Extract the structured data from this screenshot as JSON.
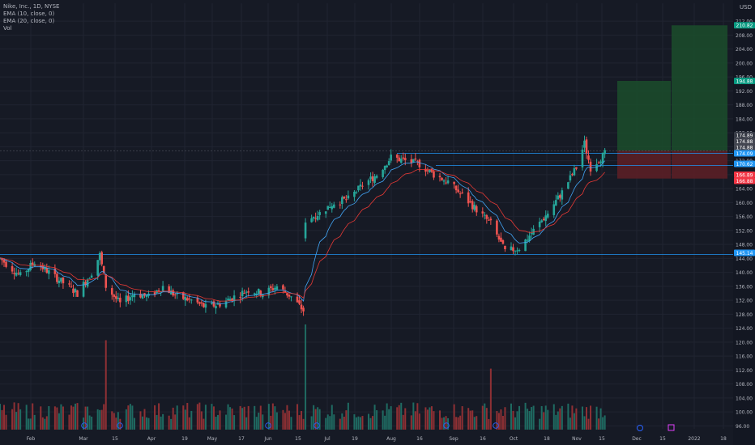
{
  "legend": {
    "title": "Nike, Inc., 1D, NYSE",
    "ema10": "EMA (10, close, 0)",
    "ema20": "EMA (20, close, 0)",
    "vol": "Vol"
  },
  "currency": "USD",
  "colors": {
    "background": "#161a25",
    "grid": "#202431",
    "up": "#26a69a",
    "down": "#ef5350",
    "vol_up": "#1f6b62",
    "vol_down": "#8f3034",
    "ema10": "#42a5f5",
    "ema20": "#e53935",
    "hline": "#2196f3",
    "target_zone": "#1b4d2b",
    "stop_zone": "#5a1f26",
    "axis_text": "#b2b5be"
  },
  "axis": {
    "price_min": 94,
    "price_max": 212.5,
    "price_ticks": [
      "96.00",
      "100.00",
      "104.00",
      "108.00",
      "112.00",
      "116.00",
      "120.00",
      "124.00",
      "128.00",
      "132.00",
      "136.00",
      "140.00",
      "144.00",
      "148.00",
      "152.00",
      "156.00",
      "160.00",
      "164.00",
      "168.00",
      "172.00",
      "176.00",
      "180.00",
      "184.00",
      "188.00",
      "192.00",
      "196.00",
      "200.00",
      "204.00",
      "208.00",
      "212.00"
    ],
    "time_labels": [
      "Feb",
      "Mar",
      "15",
      "Apr",
      "19",
      "May",
      "17",
      "Jun",
      "15",
      "Jul",
      "19",
      "Aug",
      "16",
      "Sep",
      "16",
      "Oct",
      "18",
      "Nov",
      "15",
      "Dec",
      "15",
      "2022",
      "18"
    ]
  },
  "price_badges": [
    {
      "label": "210.82",
      "value": 210.82,
      "color": "#089981"
    },
    {
      "label": "194.88",
      "value": 194.88,
      "color": "#089981"
    },
    {
      "label": "174.89",
      "value": 174.89,
      "color": "#363a45"
    },
    {
      "label": "174.88",
      "value": 174.88,
      "color": "#434651"
    },
    {
      "label": "174.88",
      "value": 174.88,
      "color": "#434651"
    },
    {
      "label": "174.09",
      "value": 174.09,
      "color": "#2196f3"
    },
    {
      "label": "170.62",
      "value": 170.62,
      "color": "#2196f3"
    },
    {
      "label": "166.89",
      "value": 166.89,
      "color": "#f23645"
    },
    {
      "label": "166.88",
      "value": 166.88,
      "color": "#f23645"
    },
    {
      "label": "145.14",
      "value": 145.14,
      "color": "#2196f3"
    }
  ],
  "chart_data": {
    "type": "candlestick",
    "title": "Nike, Inc., 1D, NYSE",
    "x_range": [
      "2021-01-26",
      "2022-01-21"
    ],
    "y_range": [
      94,
      212.5
    ],
    "price_path": [
      {
        "date": "2021-01-26",
        "close": 144
      },
      {
        "date": "2021-02-05",
        "close": 139
      },
      {
        "date": "2021-02-12",
        "close": 143
      },
      {
        "date": "2021-02-19",
        "close": 140
      },
      {
        "date": "2021-02-26",
        "close": 137
      },
      {
        "date": "2021-03-05",
        "close": 134
      },
      {
        "date": "2021-03-12",
        "close": 140
      },
      {
        "date": "2021-03-16",
        "close": 145
      },
      {
        "date": "2021-03-19",
        "close": 136
      },
      {
        "date": "2021-03-26",
        "close": 131
      },
      {
        "date": "2021-04-02",
        "close": 134
      },
      {
        "date": "2021-04-09",
        "close": 133
      },
      {
        "date": "2021-04-16",
        "close": 136
      },
      {
        "date": "2021-04-23",
        "close": 133
      },
      {
        "date": "2021-04-30",
        "close": 132
      },
      {
        "date": "2021-05-07",
        "close": 130
      },
      {
        "date": "2021-05-14",
        "close": 131
      },
      {
        "date": "2021-05-21",
        "close": 133
      },
      {
        "date": "2021-05-28",
        "close": 135
      },
      {
        "date": "2021-06-04",
        "close": 134
      },
      {
        "date": "2021-06-11",
        "close": 136
      },
      {
        "date": "2021-06-18",
        "close": 133
      },
      {
        "date": "2021-06-24",
        "close": 129
      },
      {
        "date": "2021-06-25",
        "close": 155
      },
      {
        "date": "2021-07-02",
        "close": 157
      },
      {
        "date": "2021-07-09",
        "close": 160
      },
      {
        "date": "2021-07-16",
        "close": 161
      },
      {
        "date": "2021-07-23",
        "close": 165
      },
      {
        "date": "2021-07-30",
        "close": 168
      },
      {
        "date": "2021-08-06",
        "close": 173
      },
      {
        "date": "2021-08-13",
        "close": 172
      },
      {
        "date": "2021-08-20",
        "close": 171
      },
      {
        "date": "2021-08-27",
        "close": 168
      },
      {
        "date": "2021-09-03",
        "close": 166
      },
      {
        "date": "2021-09-10",
        "close": 162
      },
      {
        "date": "2021-09-17",
        "close": 158
      },
      {
        "date": "2021-09-24",
        "close": 154
      },
      {
        "date": "2021-10-01",
        "close": 146
      },
      {
        "date": "2021-10-08",
        "close": 147
      },
      {
        "date": "2021-10-15",
        "close": 152
      },
      {
        "date": "2021-10-22",
        "close": 157
      },
      {
        "date": "2021-10-29",
        "close": 163
      },
      {
        "date": "2021-11-05",
        "close": 170
      },
      {
        "date": "2021-11-09",
        "close": 177
      },
      {
        "date": "2021-11-12",
        "close": 170
      },
      {
        "date": "2021-11-19",
        "close": 174
      }
    ],
    "ema10_last": 170.62,
    "ema20_last": 168.5,
    "volume_spikes": [
      {
        "date": "2021-03-19",
        "relative": 0.85
      },
      {
        "date": "2021-06-25",
        "relative": 1.0
      },
      {
        "date": "2021-09-24",
        "relative": 0.58
      }
    ],
    "horizontal_lines": [
      174.09,
      170.62,
      145.14
    ],
    "position_long_1": {
      "target": 194.88,
      "entry": 174.88,
      "stop": 166.89
    },
    "position_long_2": {
      "target": 210.82,
      "entry": 174.88,
      "stop": 166.88
    }
  }
}
